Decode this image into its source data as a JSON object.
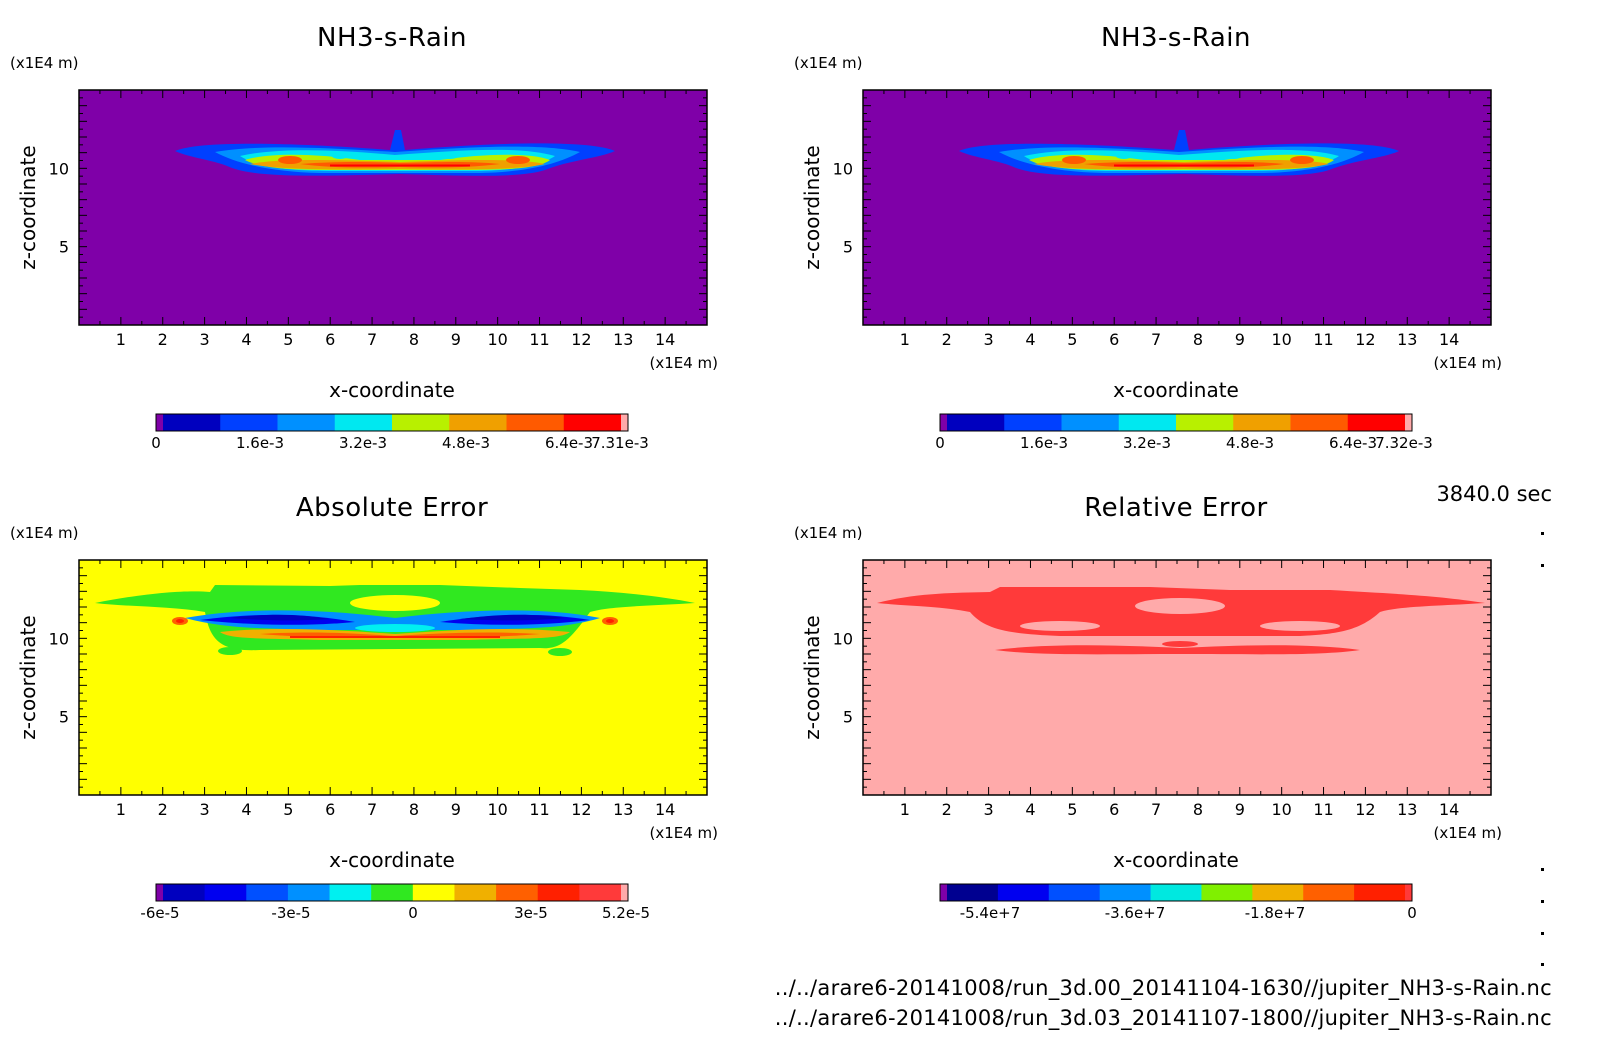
{
  "chart_data": [
    {
      "type": "heatmap",
      "title": "NH3-s-Rain",
      "xlabel": "x-coordinate",
      "ylabel": "z-coordinate",
      "x_unit": "(x1E4 m)",
      "y_unit": "(x1E4 m)",
      "xlim": [
        0,
        15
      ],
      "ylim": [
        0,
        15
      ],
      "x_ticks": [
        "1",
        "2",
        "3",
        "4",
        "5",
        "6",
        "7",
        "8",
        "9",
        "10",
        "11",
        "12",
        "13",
        "14"
      ],
      "y_ticks": [
        "5",
        "10"
      ],
      "background_color": "#7f00a8",
      "colorbar": {
        "colors": [
          "#7f00a8",
          "#0000bf",
          "#0040ff",
          "#0090ff",
          "#00e8f0",
          "#b8f000",
          "#f0a000",
          "#ff5a00",
          "#ff0000",
          "#ffaaaa"
        ],
        "tick_labels": [
          "0",
          "1.6e-3",
          "3.2e-3",
          "4.8e-3",
          "6.4e-3",
          "7.31e-3"
        ]
      },
      "field": "cloud_layer"
    },
    {
      "type": "heatmap",
      "title": "NH3-s-Rain",
      "xlabel": "x-coordinate",
      "ylabel": "z-coordinate",
      "x_unit": "(x1E4 m)",
      "y_unit": "(x1E4 m)",
      "xlim": [
        0,
        15
      ],
      "ylim": [
        0,
        15
      ],
      "x_ticks": [
        "1",
        "2",
        "3",
        "4",
        "5",
        "6",
        "7",
        "8",
        "9",
        "10",
        "11",
        "12",
        "13",
        "14"
      ],
      "y_ticks": [
        "5",
        "10"
      ],
      "background_color": "#7f00a8",
      "colorbar": {
        "colors": [
          "#7f00a8",
          "#0000bf",
          "#0040ff",
          "#0090ff",
          "#00e8f0",
          "#b8f000",
          "#f0a000",
          "#ff5a00",
          "#ff0000",
          "#ffaaaa"
        ],
        "tick_labels": [
          "0",
          "1.6e-3",
          "3.2e-3",
          "4.8e-3",
          "6.4e-3",
          "7.32e-3"
        ]
      },
      "field": "cloud_layer"
    },
    {
      "type": "heatmap",
      "title": "Absolute Error",
      "xlabel": "x-coordinate",
      "ylabel": "z-coordinate",
      "x_unit": "(x1E4 m)",
      "y_unit": "(x1E4 m)",
      "xlim": [
        0,
        15
      ],
      "ylim": [
        0,
        15
      ],
      "x_ticks": [
        "1",
        "2",
        "3",
        "4",
        "5",
        "6",
        "7",
        "8",
        "9",
        "10",
        "11",
        "12",
        "13",
        "14"
      ],
      "y_ticks": [
        "5",
        "10"
      ],
      "background_color": "#ffff00",
      "colorbar": {
        "colors": [
          "#7f00a8",
          "#0000bf",
          "#0000f0",
          "#0050ff",
          "#0090ff",
          "#00f0f0",
          "#30e820",
          "#ffff00",
          "#f0b000",
          "#ff6000",
          "#ff2000",
          "#ff3a3a",
          "#ffaaaa"
        ],
        "tick_labels": [
          "-6e-5",
          "-3e-5",
          "0",
          "3e-5",
          "5.2e-5"
        ]
      },
      "field": "error_layer"
    },
    {
      "type": "heatmap",
      "title": "Relative Error",
      "xlabel": "x-coordinate",
      "ylabel": "z-coordinate",
      "x_unit": "(x1E4 m)",
      "y_unit": "(x1E4 m)",
      "xlim": [
        0,
        15
      ],
      "ylim": [
        0,
        15
      ],
      "x_ticks": [
        "1",
        "2",
        "3",
        "4",
        "5",
        "6",
        "7",
        "8",
        "9",
        "10",
        "11",
        "12",
        "13",
        "14"
      ],
      "y_ticks": [
        "5",
        "10"
      ],
      "background_color": "#ffaaaa",
      "colorbar": {
        "colors": [
          "#7f00a8",
          "#000090",
          "#0000f0",
          "#0050ff",
          "#0090ff",
          "#00e8e0",
          "#80f000",
          "#f0b000",
          "#ff6000",
          "#ff2000",
          "#ff3a3a"
        ],
        "tick_labels": [
          "-5.4e+7",
          "-3.6e+7",
          "-1.8e+7",
          "0"
        ]
      },
      "field": "relative_layer"
    }
  ],
  "time_label": "3840.0 sec",
  "files": [
    "../../arare6-20141008/run_3d.00_20141104-1630//jupiter_NH3-s-Rain.nc",
    "../../arare6-20141008/run_3d.03_20141107-1800//jupiter_NH3-s-Rain.nc"
  ]
}
